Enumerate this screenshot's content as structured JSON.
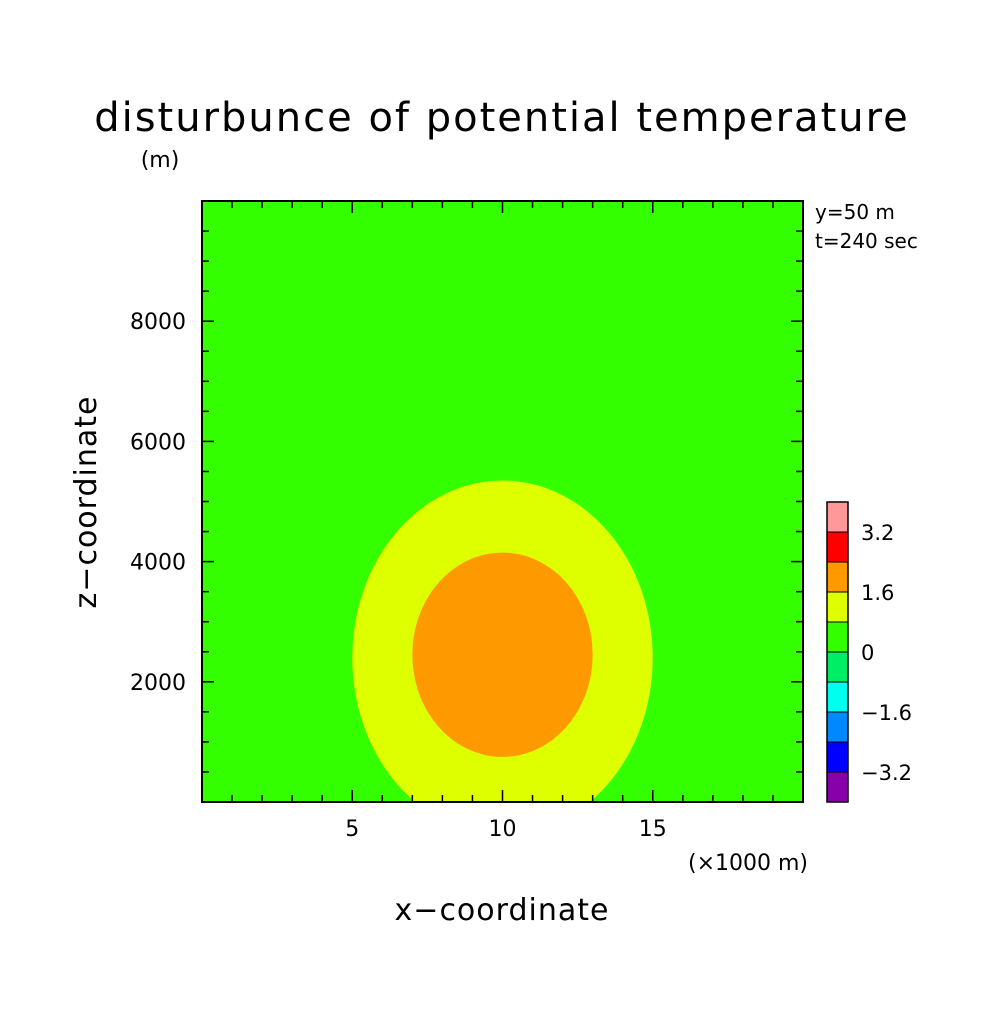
{
  "chart_data": {
    "type": "heatmap",
    "title": "disturbunce of potential temperature",
    "y_unit_label": "(m)",
    "x_unit_label": "(×1000 m)",
    "xlabel": "x−coordinate",
    "ylabel": "z−coordinate",
    "xlim": [
      0,
      20
    ],
    "ylim": [
      0,
      10000
    ],
    "x_ticks": [
      5,
      10,
      15
    ],
    "x_tick_labels": [
      "5",
      "10",
      "15"
    ],
    "y_ticks": [
      2000,
      4000,
      6000,
      8000
    ],
    "y_tick_labels": [
      "2000",
      "4000",
      "6000",
      "8000"
    ],
    "annotations": [
      "y=50 m",
      "t=240 sec"
    ],
    "contour_levels": [
      {
        "min": 0,
        "max": 0.8,
        "color": "#33ff00",
        "label": "background"
      },
      {
        "min": 0.8,
        "max": 1.6,
        "color": "#ddff00",
        "center": [
          10,
          2400
        ],
        "x_extent": [
          5.5,
          15.5
        ],
        "z_extent": [
          0,
          5350
        ]
      },
      {
        "min": 1.6,
        "max": 2.4,
        "color": "#ff9900",
        "center": [
          10,
          2450
        ],
        "x_extent": [
          7,
          13
        ],
        "z_extent": [
          750,
          4100
        ]
      }
    ],
    "colorbar": {
      "labels": [
        "3.2",
        "1.6",
        "0",
        "−1.6",
        "−3.2"
      ],
      "colors": [
        "#ff9999",
        "#ff0000",
        "#ff9900",
        "#ddff00",
        "#33ff00",
        "#00ee66",
        "#00ffee",
        "#0088ff",
        "#0000ff",
        "#8800aa"
      ]
    }
  }
}
